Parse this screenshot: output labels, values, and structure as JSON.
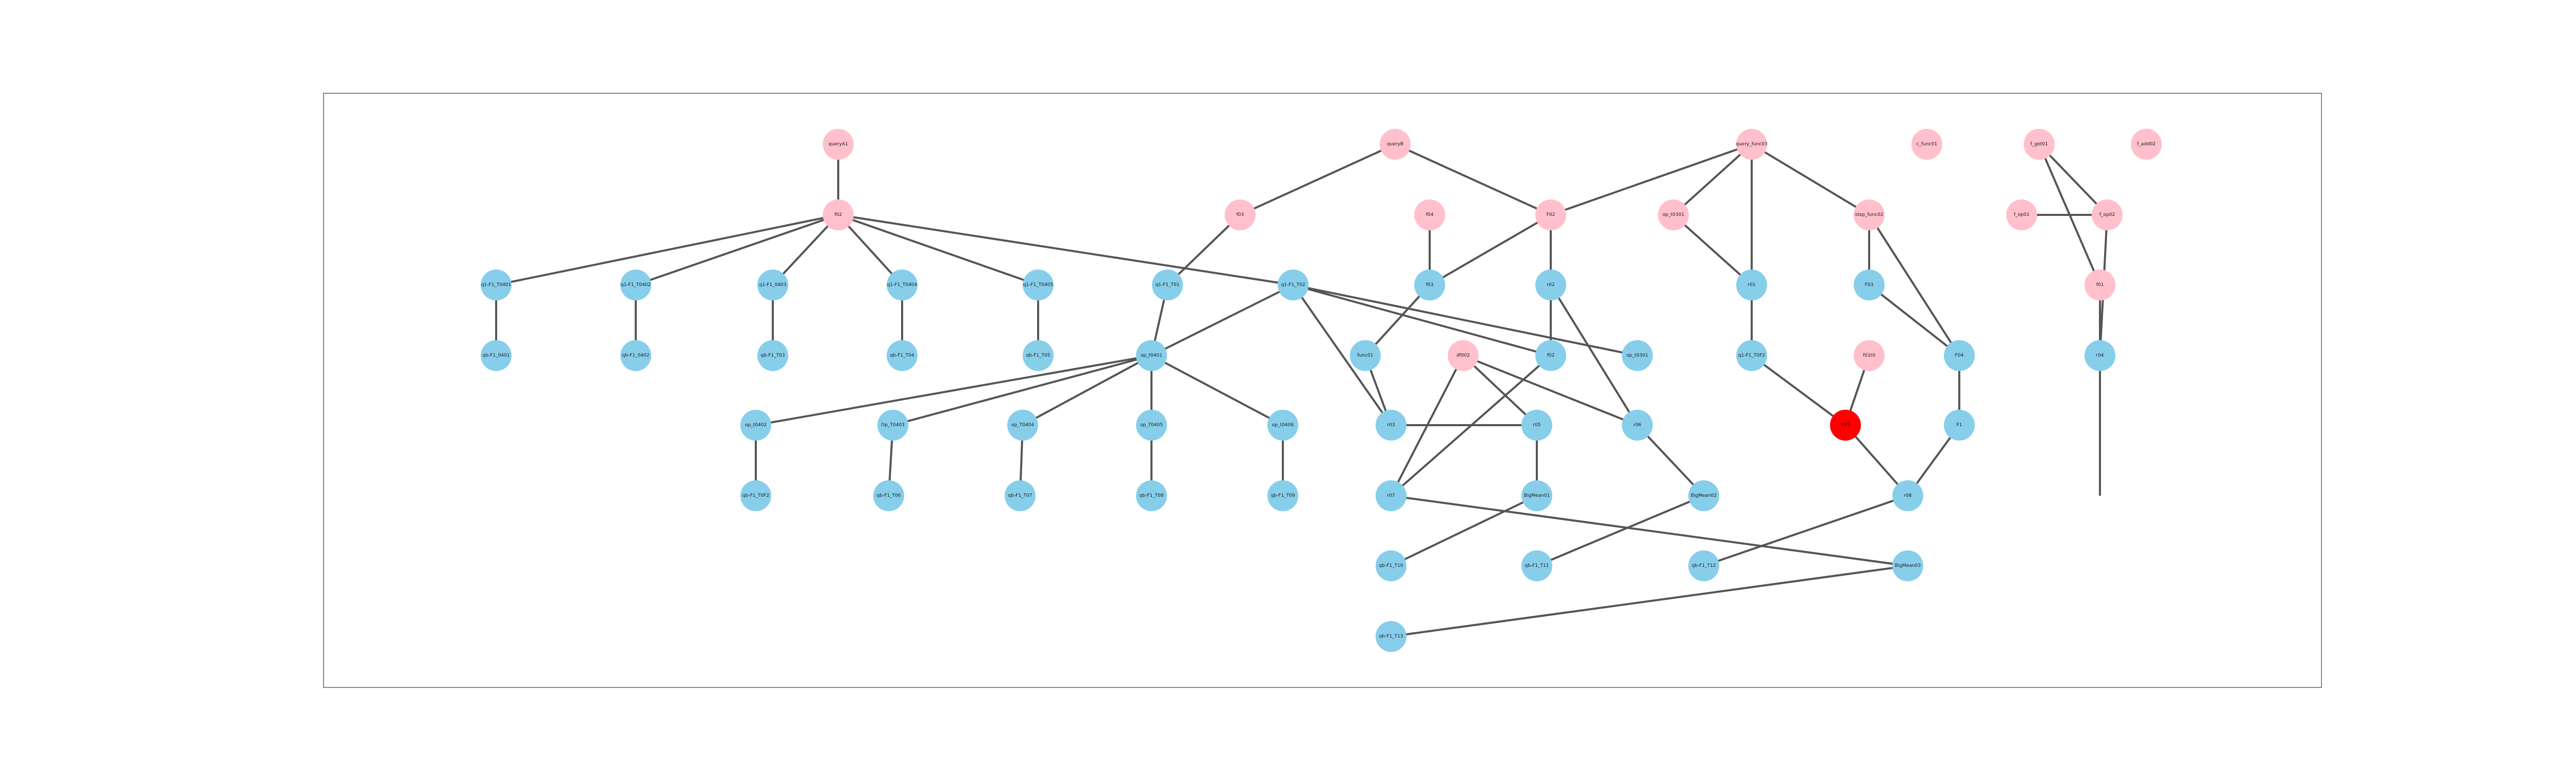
{
  "colors": {
    "query": "#FFC0CB",
    "result": "#87CEEB",
    "highlight": "#FF0000",
    "edge": "#555555"
  },
  "nodes": [
    {
      "id": "n1",
      "label": "queryA1",
      "role": "query"
    },
    {
      "id": "n2",
      "label": "queryB",
      "role": "query"
    },
    {
      "id": "n3",
      "label": "query_func03",
      "role": "query"
    },
    {
      "id": "n4",
      "label": "c_func01",
      "role": "query"
    },
    {
      "id": "n5",
      "label": "f_get01",
      "role": "query"
    },
    {
      "id": "n6",
      "label": "f_add02",
      "role": "query"
    },
    {
      "id": "n7",
      "label": "f_op01",
      "role": "query"
    },
    {
      "id": "n8",
      "label": "f_op02",
      "role": "query"
    },
    {
      "id": "n9",
      "label": "f02",
      "role": "query"
    },
    {
      "id": "n10",
      "label": "F02",
      "role": "query"
    },
    {
      "id": "n11",
      "label": "op_t0301",
      "role": "query"
    },
    {
      "id": "n12",
      "label": "step_func02",
      "role": "query"
    },
    {
      "id": "n13",
      "label": "f03",
      "role": "query"
    },
    {
      "id": "n14",
      "label": "f04",
      "role": "query"
    },
    {
      "id": "n15",
      "label": "f01",
      "role": "query"
    },
    {
      "id": "n16",
      "label": "df002",
      "role": "query"
    },
    {
      "id": "n17",
      "label": "f01t0",
      "role": "query"
    },
    {
      "id": "n18",
      "label": "q1-F1_T0401",
      "role": "result"
    },
    {
      "id": "n19",
      "label": "q1-F1_T0402",
      "role": "result"
    },
    {
      "id": "n20",
      "label": "q1-F1_0403",
      "role": "result"
    },
    {
      "id": "n21",
      "label": "q1-F1_T0404",
      "role": "result"
    },
    {
      "id": "n22",
      "label": "q1-F1_T0405",
      "role": "result"
    },
    {
      "id": "n23",
      "label": "q1-F1_T01",
      "role": "result"
    },
    {
      "id": "n24",
      "label": "q1-F1_T02",
      "role": "result"
    },
    {
      "id": "n25",
      "label": "qb-F1_0401",
      "role": "result"
    },
    {
      "id": "n26",
      "label": "qb-F1_0402",
      "role": "result"
    },
    {
      "id": "n27",
      "label": "qb-F1_T03",
      "role": "result"
    },
    {
      "id": "n28",
      "label": "qb-F1_T04",
      "role": "result"
    },
    {
      "id": "n29",
      "label": "qb-F1_T05",
      "role": "result"
    },
    {
      "id": "n30",
      "label": "f03",
      "role": "result"
    },
    {
      "id": "n31",
      "label": "r02",
      "role": "result"
    },
    {
      "id": "n32",
      "label": "op_t0301",
      "role": "result"
    },
    {
      "id": "n33",
      "label": "f02",
      "role": "result"
    },
    {
      "id": "n34",
      "label": "op_t0401",
      "role": "result"
    },
    {
      "id": "n35",
      "label": "func01",
      "role": "result"
    },
    {
      "id": "n36",
      "label": "r01",
      "role": "result"
    },
    {
      "id": "n37",
      "label": "F03",
      "role": "result"
    },
    {
      "id": "n38",
      "label": "q1-F1_T0F2",
      "role": "result"
    },
    {
      "id": "n39",
      "label": "F04",
      "role": "result"
    },
    {
      "id": "n40",
      "label": "op_t0402",
      "role": "result"
    },
    {
      "id": "n41",
      "label": "Op_T0403",
      "role": "result"
    },
    {
      "id": "n42",
      "label": "op_T0404",
      "role": "result"
    },
    {
      "id": "n43",
      "label": "op_T0405",
      "role": "result"
    },
    {
      "id": "n44",
      "label": "op_t0406",
      "role": "result"
    },
    {
      "id": "n45",
      "label": "r03",
      "role": "result"
    },
    {
      "id": "n46",
      "label": "r04",
      "role": "result"
    },
    {
      "id": "n47",
      "label": "F1",
      "role": "result"
    },
    {
      "id": "n48",
      "label": "qb-F1_T0F2",
      "role": "result"
    },
    {
      "id": "n49",
      "label": "qb-F1_T06",
      "role": "result"
    },
    {
      "id": "n50",
      "label": "qb-F1_T07",
      "role": "result"
    },
    {
      "id": "n51",
      "label": "qb-F1_T08",
      "role": "result"
    },
    {
      "id": "n52",
      "label": "qb-F1_T09",
      "role": "result"
    },
    {
      "id": "n53",
      "label": "qb-F1_T10",
      "role": "result"
    },
    {
      "id": "n54",
      "label": "r05",
      "role": "result"
    },
    {
      "id": "n55",
      "label": "r06",
      "role": "result"
    },
    {
      "id": "n56",
      "label": "r07",
      "role": "result"
    },
    {
      "id": "n57",
      "label": "F05",
      "role": "highlight"
    },
    {
      "id": "n58",
      "label": "r08",
      "role": "result"
    },
    {
      "id": "n59",
      "label": "BigMean01",
      "role": "result"
    },
    {
      "id": "n60",
      "label": "BigMean02",
      "role": "result"
    },
    {
      "id": "n61",
      "label": "qb-F1_T11",
      "role": "result"
    },
    {
      "id": "n62",
      "label": "qb-F1_T12",
      "role": "result"
    },
    {
      "id": "n63",
      "label": "BigMean03",
      "role": "result"
    },
    {
      "id": "n64",
      "label": "qb-F1_T13",
      "role": "result"
    }
  ],
  "edges": [
    [
      "n1",
      "n9"
    ],
    [
      "n9",
      "n18"
    ],
    [
      "n9",
      "n19"
    ],
    [
      "n9",
      "n20"
    ],
    [
      "n9",
      "n21"
    ],
    [
      "n9",
      "n22"
    ],
    [
      "n9",
      "n24"
    ],
    [
      "n18",
      "n25"
    ],
    [
      "n19",
      "n26"
    ],
    [
      "n20",
      "n27"
    ],
    [
      "n21",
      "n28"
    ],
    [
      "n22",
      "n29"
    ],
    [
      "n2",
      "n13"
    ],
    [
      "n2",
      "n10"
    ],
    [
      "n13",
      "n23"
    ],
    [
      "n23",
      "n34"
    ],
    [
      "n34",
      "n40"
    ],
    [
      "n34",
      "n41"
    ],
    [
      "n34",
      "n42"
    ],
    [
      "n34",
      "n43"
    ],
    [
      "n34",
      "n44"
    ],
    [
      "n34",
      "n24"
    ],
    [
      "n40",
      "n48"
    ],
    [
      "n41",
      "n49"
    ],
    [
      "n42",
      "n50"
    ],
    [
      "n43",
      "n51"
    ],
    [
      "n44",
      "n52"
    ],
    [
      "n24",
      "n45"
    ],
    [
      "n24",
      "n33"
    ],
    [
      "n24",
      "n32"
    ],
    [
      "n14",
      "n30"
    ],
    [
      "n10",
      "n30"
    ],
    [
      "n30",
      "n35"
    ],
    [
      "n35",
      "n45"
    ],
    [
      "n45",
      "n54"
    ],
    [
      "n54",
      "n59"
    ],
    [
      "n59",
      "n53"
    ],
    [
      "n10",
      "n31"
    ],
    [
      "n31",
      "n55"
    ],
    [
      "n10",
      "n33"
    ],
    [
      "n33",
      "n56"
    ],
    [
      "n56",
      "n63"
    ],
    [
      "n63",
      "n64"
    ],
    [
      "n16",
      "n54"
    ],
    [
      "n16",
      "n55"
    ],
    [
      "n16",
      "n56"
    ],
    [
      "n55",
      "n60"
    ],
    [
      "n60",
      "n61"
    ],
    [
      "n3",
      "n11"
    ],
    [
      "n3",
      "n36"
    ],
    [
      "n3",
      "n12"
    ],
    [
      "n3",
      "n10"
    ],
    [
      "n11",
      "n36"
    ],
    [
      "n36",
      "n38"
    ],
    [
      "n38",
      "n57"
    ],
    [
      "n12",
      "n37"
    ],
    [
      "n12",
      "n39"
    ],
    [
      "n37",
      "n39"
    ],
    [
      "n39",
      "n47"
    ],
    [
      "n47",
      "n58"
    ],
    [
      "n17",
      "n57"
    ],
    [
      "n57",
      "n58"
    ],
    [
      "n58",
      "n62"
    ],
    [
      "n5",
      "n15"
    ],
    [
      "n5",
      "n8"
    ],
    [
      "n7",
      "n8"
    ],
    [
      "n15",
      "n46"
    ],
    [
      "n8",
      "n46"
    ],
    [
      "n46",
      "n65"
    ],
    [
      "n65",
      "n66"
    ]
  ]
}
